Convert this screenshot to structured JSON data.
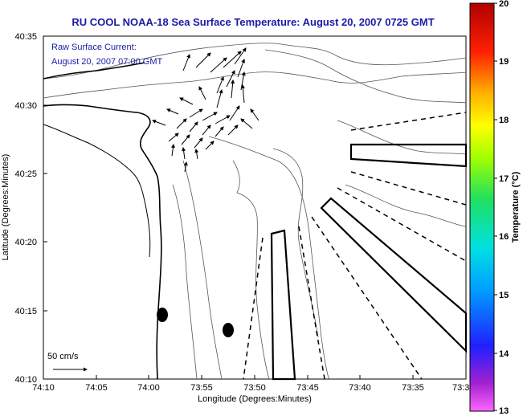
{
  "title": "RU COOL  NOAA-18  Sea Surface Temperature:  August 20, 2007 0725 GMT",
  "annotation": {
    "line1": "Raw Surface Current:",
    "line2": "August 20, 2007 07:00 GMT"
  },
  "scale_label": "50 cm/s",
  "x_axis": {
    "label": "Longitude (Degrees:Minutes)",
    "ticks": [
      "74:10",
      "74:05",
      "74:00",
      "73:55",
      "73:50",
      "73:45",
      "73:40",
      "73:35",
      "73:3"
    ]
  },
  "y_axis": {
    "label": "Latitude (Degrees:Minutes)",
    "ticks": [
      "40:35",
      "40:30",
      "40:25",
      "40:20",
      "40:15",
      "40:10"
    ]
  },
  "colorbar": {
    "label": "Temperature (°C)",
    "ticks": [
      "20",
      "19",
      "18",
      "17",
      "16",
      "15",
      "14",
      "13"
    ],
    "min": 13,
    "max": 20
  },
  "colors": {
    "title": "#1a1aa6",
    "annotation": "#1a1aa6"
  }
}
